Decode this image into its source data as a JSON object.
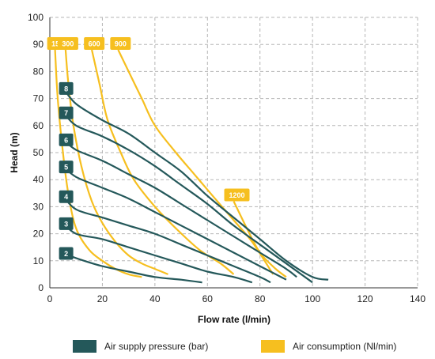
{
  "chart_data": {
    "type": "line",
    "xlabel": "Flow rate (l/min)",
    "ylabel": "Head (m)",
    "xlim": [
      0,
      140
    ],
    "ylim": [
      0,
      100
    ],
    "xticks": [
      "0",
      "20",
      "40",
      "60",
      "80",
      "100",
      "120",
      "140"
    ],
    "yticks": [
      "0",
      "10",
      "20",
      "30",
      "40",
      "50",
      "60",
      "70",
      "80",
      "90",
      "100"
    ],
    "grid": true,
    "grid_style": "dashed",
    "colors": {
      "pressure": "#24585a",
      "air": "#f6bf1f"
    },
    "pressure_series": [
      {
        "name": "2",
        "points": [
          [
            5,
            13
          ],
          [
            10,
            11
          ],
          [
            20,
            8
          ],
          [
            30,
            6
          ],
          [
            40,
            4
          ],
          [
            50,
            3
          ],
          [
            58,
            2
          ]
        ]
      },
      {
        "name": "3",
        "points": [
          [
            5,
            24
          ],
          [
            10,
            20
          ],
          [
            20,
            18
          ],
          [
            30,
            15
          ],
          [
            40,
            12
          ],
          [
            50,
            9
          ],
          [
            60,
            6
          ],
          [
            70,
            4
          ],
          [
            77,
            2
          ]
        ]
      },
      {
        "name": "4",
        "points": [
          [
            5,
            34
          ],
          [
            10,
            29
          ],
          [
            20,
            26
          ],
          [
            30,
            23
          ],
          [
            40,
            20
          ],
          [
            50,
            16
          ],
          [
            60,
            12
          ],
          [
            70,
            8
          ],
          [
            80,
            4
          ],
          [
            84,
            2
          ]
        ]
      },
      {
        "name": "5",
        "points": [
          [
            5,
            45
          ],
          [
            10,
            41
          ],
          [
            20,
            37
          ],
          [
            30,
            33
          ],
          [
            40,
            28
          ],
          [
            50,
            23
          ],
          [
            60,
            18
          ],
          [
            70,
            13
          ],
          [
            80,
            8
          ],
          [
            90,
            3
          ]
        ]
      },
      {
        "name": "6",
        "points": [
          [
            5,
            55
          ],
          [
            10,
            51
          ],
          [
            20,
            47
          ],
          [
            30,
            42
          ],
          [
            40,
            37
          ],
          [
            50,
            31
          ],
          [
            60,
            25
          ],
          [
            70,
            19
          ],
          [
            80,
            13
          ],
          [
            90,
            7
          ],
          [
            94,
            4
          ]
        ]
      },
      {
        "name": "7",
        "points": [
          [
            5,
            65
          ],
          [
            10,
            60
          ],
          [
            20,
            56
          ],
          [
            30,
            51
          ],
          [
            40,
            45
          ],
          [
            50,
            38
          ],
          [
            60,
            31
          ],
          [
            70,
            23
          ],
          [
            80,
            16
          ],
          [
            90,
            9
          ],
          [
            100,
            2
          ]
        ]
      },
      {
        "name": "8",
        "points": [
          [
            5,
            74
          ],
          [
            10,
            68
          ],
          [
            20,
            62
          ],
          [
            30,
            57
          ],
          [
            40,
            50
          ],
          [
            50,
            43
          ],
          [
            60,
            34
          ],
          [
            70,
            26
          ],
          [
            80,
            18
          ],
          [
            90,
            10
          ],
          [
            100,
            4
          ],
          [
            106,
            3
          ]
        ]
      }
    ],
    "air_series": [
      {
        "name": "150",
        "points": [
          [
            2,
            88
          ],
          [
            3,
            70
          ],
          [
            5,
            50
          ],
          [
            7,
            35
          ],
          [
            10,
            22
          ],
          [
            15,
            14
          ],
          [
            20,
            10
          ],
          [
            25,
            7
          ],
          [
            30,
            5
          ],
          [
            35,
            4
          ]
        ]
      },
      {
        "name": "300",
        "points": [
          [
            6,
            88
          ],
          [
            7,
            76
          ],
          [
            9,
            60
          ],
          [
            12,
            45
          ],
          [
            16,
            32
          ],
          [
            20,
            24
          ],
          [
            25,
            17
          ],
          [
            30,
            12
          ],
          [
            35,
            9
          ],
          [
            40,
            7
          ],
          [
            45,
            5
          ]
        ]
      },
      {
        "name": "600",
        "points": [
          [
            16,
            88
          ],
          [
            19,
            75
          ],
          [
            22,
            62
          ],
          [
            27,
            50
          ],
          [
            32,
            40
          ],
          [
            40,
            30
          ],
          [
            48,
            22
          ],
          [
            57,
            14
          ],
          [
            65,
            9
          ],
          [
            70,
            5
          ]
        ]
      },
      {
        "name": "900",
        "points": [
          [
            26,
            88
          ],
          [
            30,
            80
          ],
          [
            35,
            70
          ],
          [
            40,
            60
          ],
          [
            48,
            50
          ],
          [
            55,
            42
          ],
          [
            62,
            34
          ],
          [
            70,
            25
          ],
          [
            77,
            17
          ],
          [
            85,
            5
          ]
        ]
      },
      {
        "name": "1200",
        "points": [
          [
            70,
            32
          ],
          [
            75,
            22
          ],
          [
            80,
            13
          ],
          [
            86,
            7
          ],
          [
            90,
            4
          ]
        ]
      }
    ],
    "legend": [
      {
        "key": "pressure",
        "label": "Air supply pressure (bar)"
      },
      {
        "key": "air",
        "label": "Air consumption (Nl/min)"
      }
    ]
  }
}
